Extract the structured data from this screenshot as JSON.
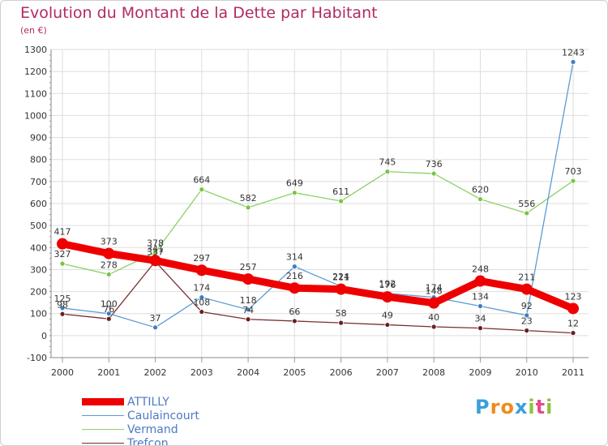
{
  "header": {
    "title": "Evolution du Montant de la Dette par Habitant",
    "subtitle": "(en €)"
  },
  "logo": {
    "letters": [
      "P",
      "r",
      "o",
      "x",
      "i",
      "t",
      "i"
    ],
    "colors": [
      "#3aa0d8",
      "#f08a1c",
      "#f08a1c",
      "#3aa0d8",
      "#8cc43c",
      "#e14c8e",
      "#8cc43c"
    ]
  },
  "chart_data": {
    "type": "line",
    "title": "Evolution du Montant de la Dette par Habitant",
    "subtitle": "(en €)",
    "xlabel": "",
    "ylabel": "",
    "x": [
      "2000",
      "2001",
      "2002",
      "2003",
      "2004",
      "2005",
      "2006",
      "2007",
      "2008",
      "2009",
      "2010",
      "2011"
    ],
    "ylim": [
      -100,
      1300
    ],
    "yticks": [
      -100,
      0,
      100,
      200,
      300,
      400,
      500,
      600,
      700,
      800,
      900,
      1000,
      1100,
      1200,
      1300
    ],
    "grid": true,
    "legend_position": "bottom-left",
    "series": [
      {
        "name": "Vermand",
        "color": "#8cd066",
        "marker": "#7ac442",
        "values": [
          327,
          278,
          378,
          664,
          582,
          649,
          611,
          745,
          736,
          620,
          556,
          703
        ],
        "labels": [
          "327",
          "278",
          "378",
          "664",
          "582",
          "649",
          "611",
          "745",
          "736",
          "620",
          "556",
          "703"
        ]
      },
      {
        "name": "Trefcon",
        "color": "#7a2e2e",
        "marker": "#6b1f1f",
        "values": [
          98,
          76,
          337,
          108,
          74,
          66,
          58,
          49,
          40,
          34,
          23,
          12
        ],
        "labels": [
          "98",
          "76",
          "337",
          "108",
          "74",
          "66",
          "58",
          "49",
          "40",
          "34",
          "23",
          "12"
        ]
      },
      {
        "name": "Caulaincourt",
        "color": "#5b9bd5",
        "marker": "#3d7fc2",
        "values": [
          125,
          100,
          37,
          174,
          118,
          314,
          224,
          192,
          174,
          134,
          92,
          1243
        ],
        "labels": [
          "125",
          "100",
          "37",
          "174",
          "118",
          "314",
          "224",
          "192",
          "174",
          "134",
          "92",
          "1243"
        ]
      },
      {
        "name": "ATTILLY",
        "color": "#ee0000",
        "marker": "#ee0000",
        "values": [
          417,
          373,
          341,
          297,
          257,
          216,
          211,
          176,
          148,
          248,
          211,
          123
        ],
        "labels": [
          "417",
          "373",
          "341",
          "297",
          "257",
          "216",
          "211",
          "176",
          "148",
          "248",
          "211",
          "123"
        ]
      }
    ],
    "legend": [
      {
        "name": "ATTILLY",
        "color": "#ee0000"
      },
      {
        "name": "Caulaincourt",
        "color": "#5b9bd5"
      },
      {
        "name": "Vermand",
        "color": "#8cd066"
      },
      {
        "name": "Trefcon",
        "color": "#7a2e2e"
      }
    ]
  }
}
